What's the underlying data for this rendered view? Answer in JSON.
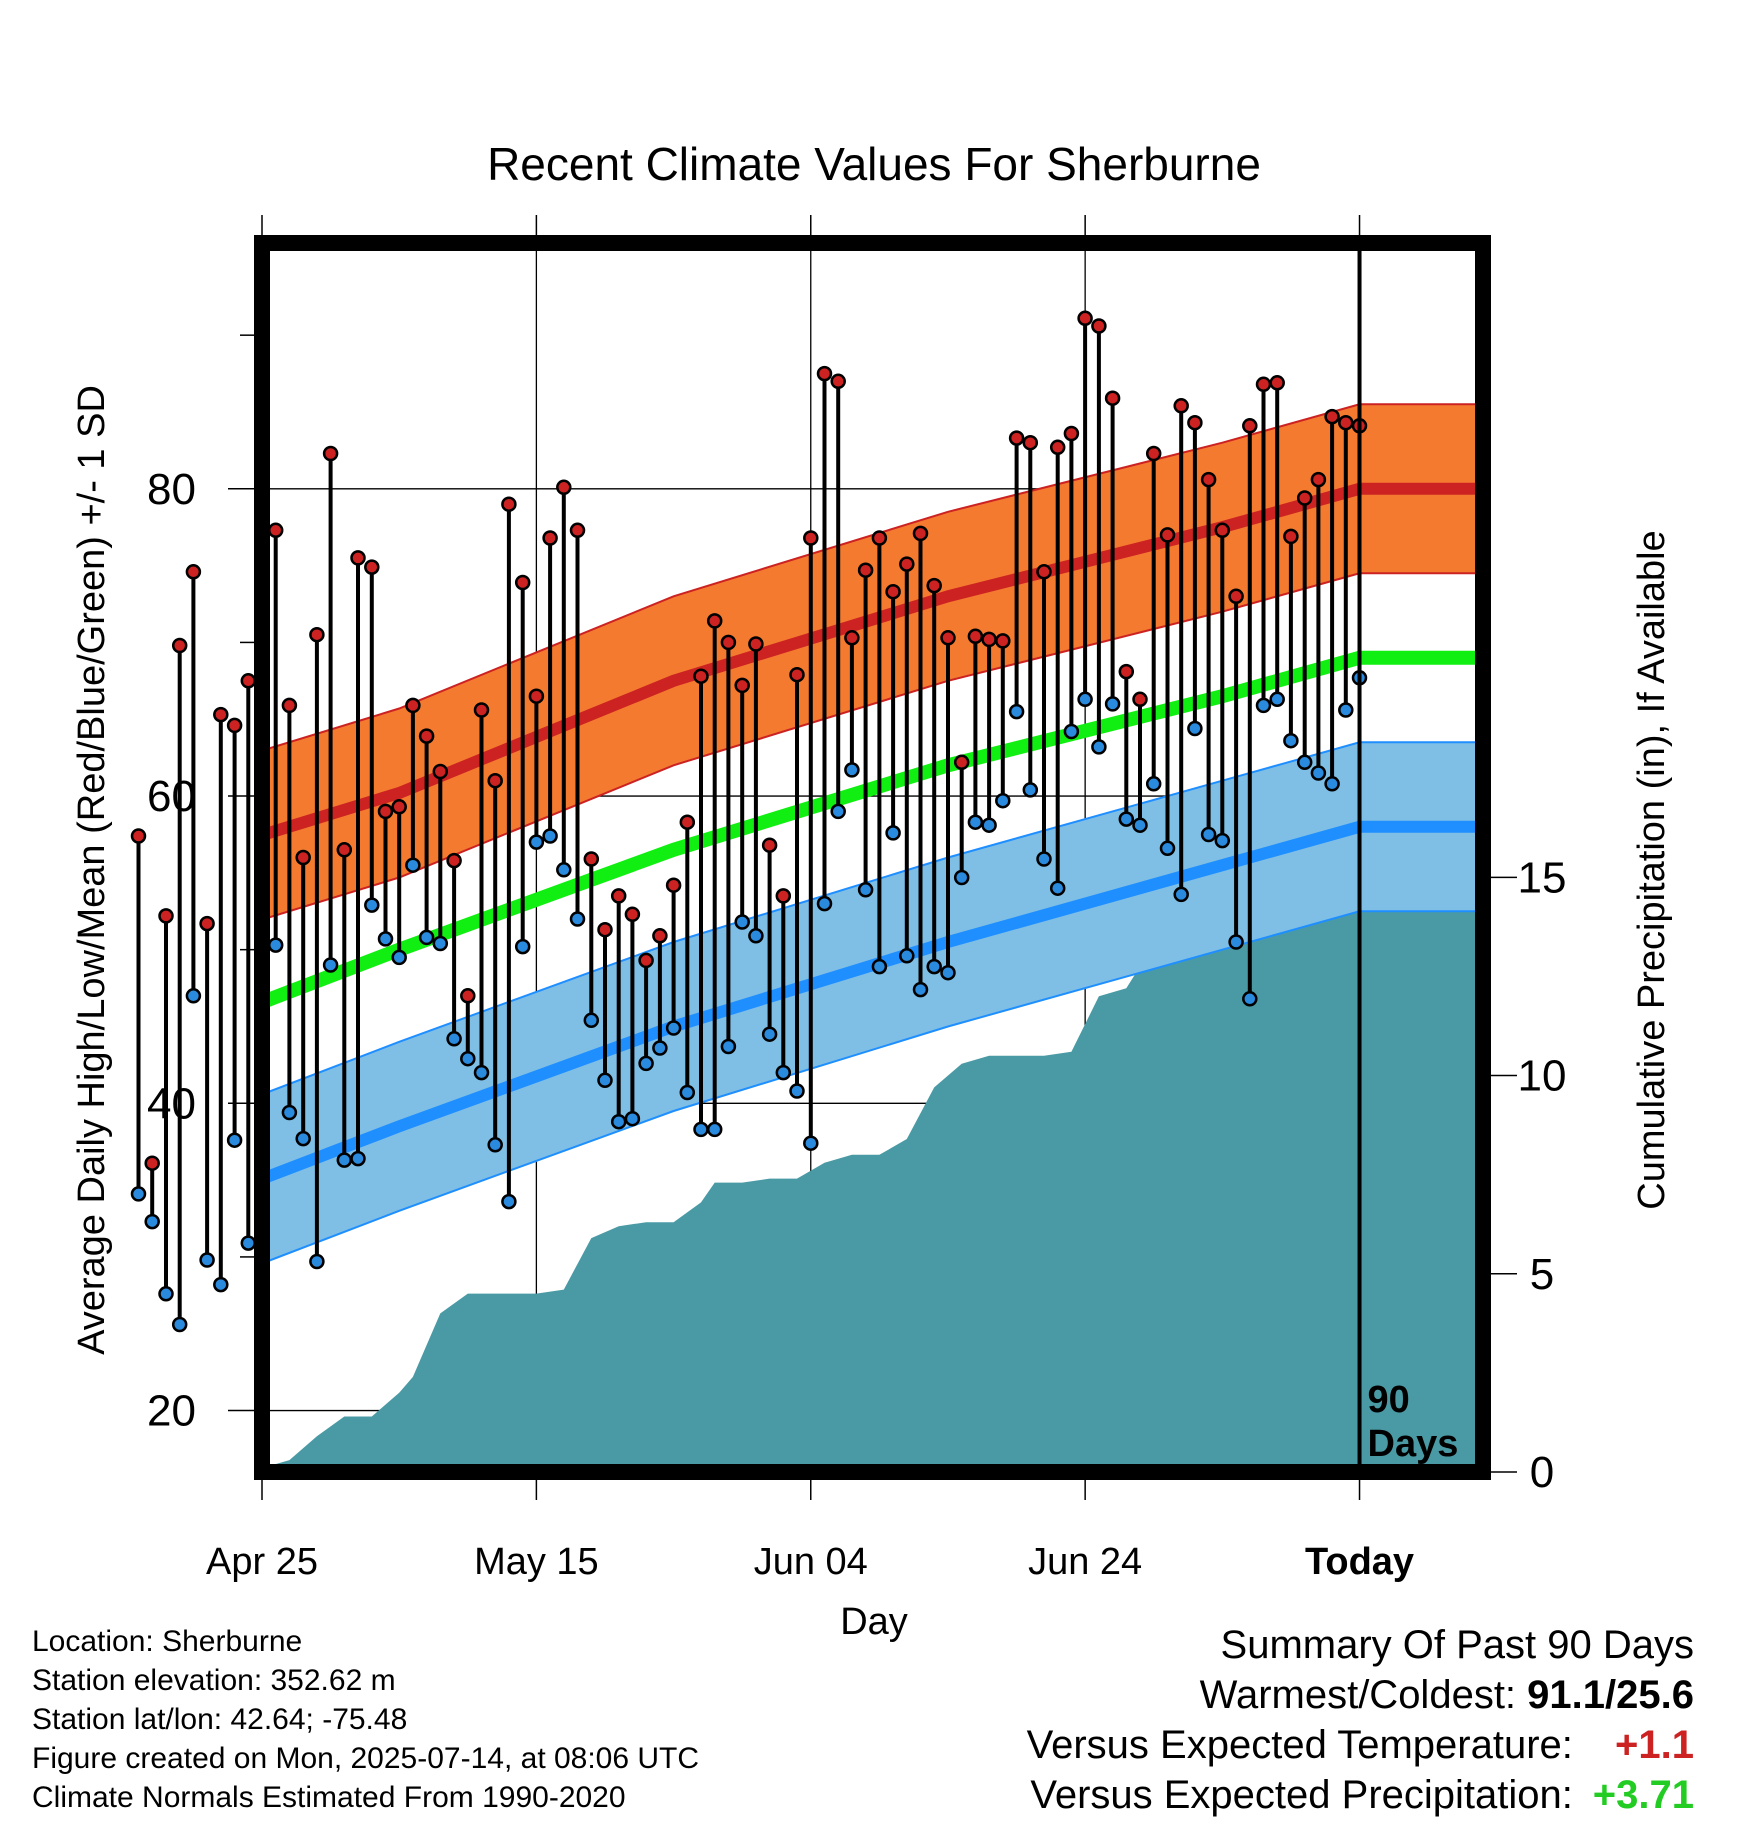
{
  "chart_data": {
    "type": "line",
    "title": "Recent Climate Values For Sherburne",
    "xlabel": "Day",
    "ylabel": "Average Daily High/Low/Mean (Red/Blue/Green) +/- 1 SD",
    "y2label": "Cumulative Precipitation (in), If Available",
    "x_ticks": [
      "Apr 25",
      "May 15",
      "Jun 04",
      "Jun 24",
      "Today"
    ],
    "y_ticks": [
      "20",
      "40",
      "60",
      "80"
    ],
    "y2_ticks": [
      "0",
      "5",
      "10",
      "15"
    ],
    "ylim": [
      16,
      96
    ],
    "y2lim": [
      0,
      31
    ],
    "xlim": [
      -80,
      9
    ],
    "today_label": [
      "90",
      "Days"
    ],
    "grid": true,
    "normal_high": {
      "x": [
        -89,
        -70,
        -50,
        -30,
        -10,
        0,
        9
      ],
      "mean": [
        55.0,
        60.2,
        67.5,
        73.0,
        77.5,
        80.0,
        80.0
      ],
      "sd": 5.5
    },
    "normal_low": {
      "x": [
        -89,
        -70,
        -50,
        -30,
        -10,
        0,
        9
      ],
      "mean": [
        32.0,
        38.5,
        45.0,
        50.5,
        55.5,
        58.0,
        58.0
      ],
      "sd": 5.5
    },
    "normal_mean": {
      "x": [
        -89,
        -70,
        -50,
        -30,
        -10,
        0,
        9
      ],
      "values": [
        43.5,
        50.0,
        56.5,
        62.0,
        66.5,
        69.0,
        69.0
      ]
    },
    "series": [
      {
        "name": "High",
        "values": [
          57.4,
          36.1,
          52.2,
          69.8,
          74.6,
          51.7,
          65.3,
          64.6,
          67.5,
          78.5,
          77.3,
          65.9,
          56.0,
          70.5,
          82.3,
          56.5,
          75.5,
          74.9,
          59.0,
          59.3,
          65.9,
          63.9,
          61.6,
          55.8,
          47.0,
          65.6,
          61.0,
          79.0,
          73.9,
          66.5,
          76.8,
          80.1,
          77.3,
          55.9,
          51.3,
          53.5,
          52.3,
          49.3,
          50.9,
          54.2,
          58.3,
          67.8,
          71.4,
          70.0,
          67.2,
          69.9,
          56.8,
          53.5,
          67.9,
          76.8,
          87.5,
          87.0,
          70.3,
          74.7,
          76.8,
          73.3,
          75.1,
          77.1,
          73.7,
          70.3,
          62.2,
          70.4,
          70.2,
          70.1,
          83.3,
          83.0,
          74.6,
          82.7,
          83.6,
          91.1,
          90.6,
          85.9,
          68.1,
          66.3,
          82.3,
          77.0,
          85.4,
          84.3,
          80.6,
          77.3,
          73.0,
          84.1,
          86.8,
          86.9,
          76.9,
          79.4,
          80.6,
          84.7,
          84.3,
          84.1
        ]
      },
      {
        "name": "Low",
        "values": [
          34.1,
          32.3,
          27.6,
          25.6,
          47.0,
          29.8,
          28.2,
          37.6,
          30.9,
          39.9,
          50.3,
          39.4,
          37.7,
          29.7,
          49.0,
          36.3,
          36.4,
          52.9,
          50.7,
          49.5,
          55.5,
          50.8,
          50.4,
          44.2,
          42.9,
          42.0,
          37.3,
          33.6,
          50.2,
          57.0,
          57.4,
          55.2,
          52.0,
          45.4,
          41.5,
          38.8,
          39.0,
          42.6,
          43.6,
          44.9,
          40.7,
          38.3,
          38.3,
          43.7,
          51.8,
          50.9,
          44.5,
          42.0,
          40.8,
          37.4,
          53.0,
          59.0,
          61.7,
          53.9,
          48.9,
          57.6,
          49.6,
          47.4,
          48.9,
          48.5,
          54.7,
          58.3,
          58.1,
          59.7,
          65.5,
          60.4,
          55.9,
          54.0,
          64.2,
          66.3,
          63.2,
          66.0,
          58.5,
          58.1,
          60.8,
          56.6,
          53.6,
          64.4,
          57.5,
          57.1,
          50.5,
          46.8,
          65.9,
          66.3,
          63.6,
          62.2,
          61.5,
          60.8,
          65.6,
          67.7
        ]
      }
    ],
    "precip": {
      "x": [
        -89,
        -80,
        -78,
        -76,
        -74,
        -72,
        -70,
        -69,
        -67,
        -65,
        -64,
        -62,
        -60,
        -58,
        -56,
        -54,
        -52,
        -50,
        -48,
        -47,
        -45,
        -43,
        -41,
        -39,
        -37,
        -35,
        -33,
        -31,
        -29,
        -27,
        -25,
        -23,
        -21,
        -19,
        -17,
        -15,
        -13,
        -11,
        -9,
        -7,
        -5,
        -3,
        -1,
        0,
        9
      ],
      "values": [
        0.0,
        0.1,
        0.3,
        0.9,
        1.4,
        1.4,
        2.0,
        2.4,
        4.0,
        4.5,
        4.5,
        4.5,
        4.5,
        4.6,
        5.9,
        6.2,
        6.3,
        6.3,
        6.8,
        7.3,
        7.3,
        7.4,
        7.4,
        7.8,
        8.0,
        8.0,
        8.4,
        9.7,
        10.3,
        10.5,
        10.5,
        10.5,
        10.6,
        12.0,
        12.2,
        13.3,
        13.4,
        14.1,
        14.4,
        14.6,
        14.6,
        15.0,
        15.1,
        15.5,
        15.5
      ]
    },
    "colors": {
      "high_band": "#f47a30",
      "high_line": "#cc2222",
      "low_band": "#7fbfe6",
      "low_line": "#1f8fff",
      "mean_line": "#11ee11",
      "precip": "#4a9aa5",
      "high_dot": "#cc2222",
      "low_dot": "#2a8ade"
    }
  },
  "footer": {
    "location": "Location: Sherburne",
    "elevation": "Station elevation: 352.62 m",
    "latlon": "Station lat/lon: 42.64; -75.48",
    "created": "Figure created on Mon, 2025-07-14, at 08:06 UTC",
    "normals": "Climate Normals Estimated From 1990-2020"
  },
  "summary": {
    "heading": "Summary Of Past 90 Days",
    "warm_cold_label": "Warmest/Coldest:",
    "warm_cold_value": "91.1/25.6",
    "temp_label": "Versus Expected Temperature:",
    "temp_value": "+1.1",
    "temp_color": "#cc2222",
    "precip_label": "Versus Expected Precipitation:",
    "precip_value": "+3.71",
    "precip_color": "#22cc22"
  }
}
